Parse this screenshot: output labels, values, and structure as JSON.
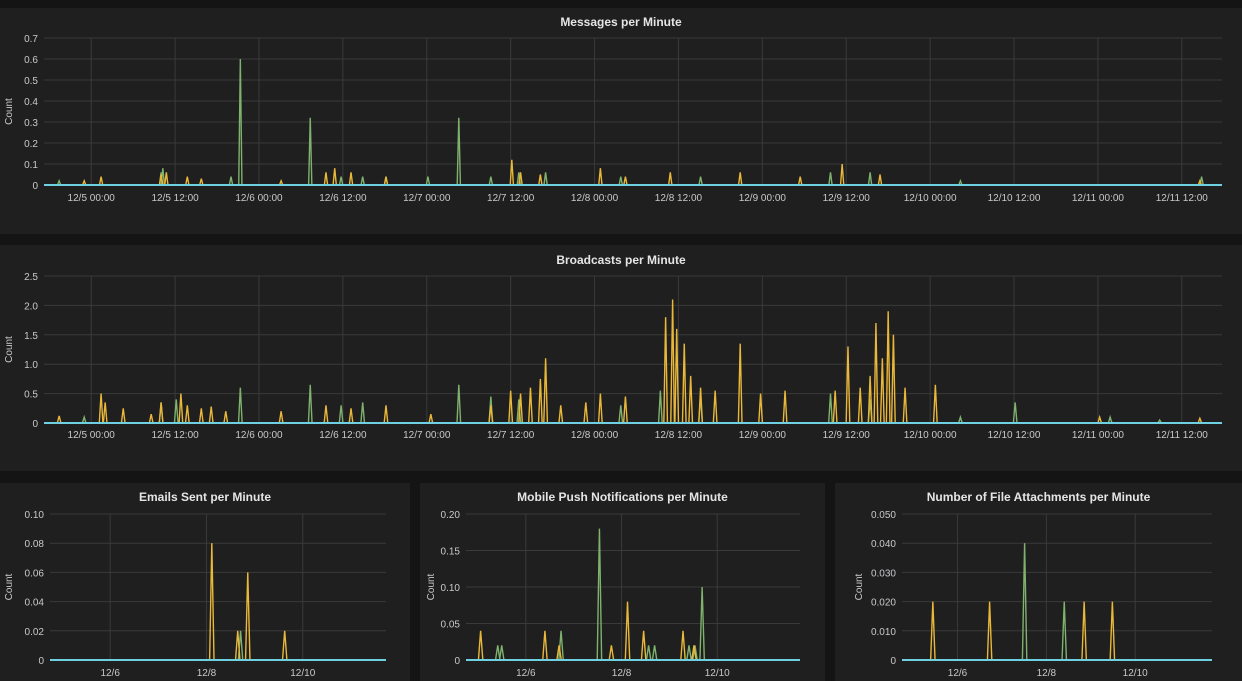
{
  "colors": {
    "background": "#1f1f20",
    "grid": "#3a3a3a",
    "green": "#7eb26d",
    "yellow": "#eab839",
    "cyan": "#6ed0e0"
  },
  "chart_data": [
    {
      "id": "messages",
      "type": "line",
      "title": "Messages per Minute",
      "ylabel": "Count",
      "xrange": [
        "12/4 17:15",
        "12/11 17:45"
      ],
      "ylim": [
        0,
        0.7
      ],
      "yticks": [
        "0",
        "0.1",
        "0.2",
        "0.3",
        "0.4",
        "0.5",
        "0.6",
        "0.7"
      ],
      "xticks": [
        "12/5 00:00",
        "12/5 12:00",
        "12/6 00:00",
        "12/6 12:00",
        "12/7 00:00",
        "12/7 12:00",
        "12/8 00:00",
        "12/8 12:00",
        "12/9 00:00",
        "12/9 12:00",
        "12/10 00:00",
        "12/10 12:00",
        "12/11 00:00",
        "12/11 12:00"
      ],
      "grid": true,
      "series": [
        {
          "color": "#7eb26d",
          "points": [
            [
              "12/4 19:25",
              0.02
            ],
            [
              "12/5 10:00",
              0.06
            ],
            [
              "12/5 10:15",
              0.08
            ],
            [
              "12/5 20:00",
              0.04
            ],
            [
              "12/5 21:20",
              0.6
            ],
            [
              "12/6 07:20",
              0.32
            ],
            [
              "12/6 11:45",
              0.04
            ],
            [
              "12/6 14:50",
              0.04
            ],
            [
              "12/6 18:10",
              0.04
            ],
            [
              "12/7 00:10",
              0.04
            ],
            [
              "12/7 04:35",
              0.32
            ],
            [
              "12/7 09:10",
              0.04
            ],
            [
              "12/7 13:10",
              0.06
            ],
            [
              "12/7 17:00",
              0.06
            ],
            [
              "12/8 03:45",
              0.04
            ],
            [
              "12/8 15:10",
              0.04
            ],
            [
              "12/9 09:45",
              0.06
            ],
            [
              "12/9 15:25",
              0.06
            ],
            [
              "12/10 04:20",
              0.02
            ],
            [
              "12/11 14:50",
              0.04
            ]
          ]
        },
        {
          "color": "#eab839",
          "points": [
            [
              "12/4 23:00",
              0.02
            ],
            [
              "12/5 01:25",
              0.04
            ],
            [
              "12/5 10:00",
              0.05
            ],
            [
              "12/5 10:45",
              0.06
            ],
            [
              "12/5 13:45",
              0.04
            ],
            [
              "12/5 15:45",
              0.03
            ],
            [
              "12/6 03:10",
              0.02
            ],
            [
              "12/6 09:35",
              0.06
            ],
            [
              "12/6 10:50",
              0.08
            ],
            [
              "12/6 13:10",
              0.06
            ],
            [
              "12/6 18:10",
              0.04
            ],
            [
              "12/7 12:10",
              0.12
            ],
            [
              "12/7 13:25",
              0.06
            ],
            [
              "12/7 16:15",
              0.05
            ],
            [
              "12/8 00:50",
              0.08
            ],
            [
              "12/8 04:25",
              0.04
            ],
            [
              "12/8 10:50",
              0.06
            ],
            [
              "12/8 20:50",
              0.06
            ],
            [
              "12/9 05:25",
              0.04
            ],
            [
              "12/9 11:25",
              0.1
            ],
            [
              "12/9 16:50",
              0.05
            ],
            [
              "12/11 14:35",
              0.02
            ]
          ]
        },
        {
          "color": "#6ed0e0",
          "constant": 0
        }
      ]
    },
    {
      "id": "broadcasts",
      "type": "line",
      "title": "Broadcasts per Minute",
      "ylabel": "Count",
      "xrange": [
        "12/4 17:15",
        "12/11 17:45"
      ],
      "ylim": [
        0,
        2.5
      ],
      "yticks": [
        "0",
        "0.5",
        "1.0",
        "1.5",
        "2.0",
        "2.5"
      ],
      "xticks": [
        "12/5 00:00",
        "12/5 12:00",
        "12/6 00:00",
        "12/6 12:00",
        "12/7 00:00",
        "12/7 12:00",
        "12/8 00:00",
        "12/8 12:00",
        "12/9 00:00",
        "12/9 12:00",
        "12/10 00:00",
        "12/10 12:00",
        "12/11 00:00",
        "12/11 12:00"
      ],
      "grid": true,
      "series": [
        {
          "color": "#7eb26d",
          "points": [
            [
              "12/4 23:00",
              0.1
            ],
            [
              "12/5 10:00",
              0.35
            ],
            [
              "12/5 12:10",
              0.4
            ],
            [
              "12/5 21:20",
              0.6
            ],
            [
              "12/6 07:20",
              0.65
            ],
            [
              "12/6 11:45",
              0.3
            ],
            [
              "12/6 14:50",
              0.35
            ],
            [
              "12/7 04:35",
              0.65
            ],
            [
              "12/7 09:10",
              0.45
            ],
            [
              "12/7 13:10",
              0.4
            ],
            [
              "12/8 03:45",
              0.3
            ],
            [
              "12/8 09:25",
              0.55
            ],
            [
              "12/8 15:10",
              0.45
            ],
            [
              "12/9 09:45",
              0.5
            ],
            [
              "12/9 15:25",
              0.4
            ],
            [
              "12/10 04:20",
              0.1
            ],
            [
              "12/10 12:10",
              0.35
            ],
            [
              "12/11 01:45",
              0.1
            ],
            [
              "12/11 08:50",
              0.05
            ]
          ]
        },
        {
          "color": "#eab839",
          "points": [
            [
              "12/4 19:25",
              0.12
            ],
            [
              "12/5 01:25",
              0.5
            ],
            [
              "12/5 02:00",
              0.35
            ],
            [
              "12/5 04:35",
              0.25
            ],
            [
              "12/5 08:35",
              0.15
            ],
            [
              "12/5 10:00",
              0.35
            ],
            [
              "12/5 12:50",
              0.5
            ],
            [
              "12/5 13:45",
              0.3
            ],
            [
              "12/5 15:45",
              0.25
            ],
            [
              "12/5 17:10",
              0.28
            ],
            [
              "12/5 19:15",
              0.2
            ],
            [
              "12/6 03:10",
              0.2
            ],
            [
              "12/6 09:35",
              0.3
            ],
            [
              "12/6 13:10",
              0.25
            ],
            [
              "12/6 18:10",
              0.3
            ],
            [
              "12/7 00:35",
              0.15
            ],
            [
              "12/7 09:10",
              0.3
            ],
            [
              "12/7 12:00",
              0.55
            ],
            [
              "12/7 13:25",
              0.5
            ],
            [
              "12/7 14:50",
              0.6
            ],
            [
              "12/7 16:15",
              0.75
            ],
            [
              "12/7 17:00",
              1.1
            ],
            [
              "12/7 19:10",
              0.3
            ],
            [
              "12/7 22:45",
              0.35
            ],
            [
              "12/8 00:50",
              0.5
            ],
            [
              "12/8 04:25",
              0.45
            ],
            [
              "12/8 10:10",
              1.8
            ],
            [
              "12/8 11:10",
              2.1
            ],
            [
              "12/8 11:45",
              1.6
            ],
            [
              "12/8 12:50",
              1.35
            ],
            [
              "12/8 13:45",
              0.8
            ],
            [
              "12/8 15:10",
              0.6
            ],
            [
              "12/8 17:15",
              0.55
            ],
            [
              "12/8 20:50",
              1.35
            ],
            [
              "12/8 23:45",
              0.5
            ],
            [
              "12/9 03:15",
              0.55
            ],
            [
              "12/9 10:25",
              0.55
            ],
            [
              "12/9 12:15",
              1.3
            ],
            [
              "12/9 14:00",
              0.6
            ],
            [
              "12/9 15:25",
              0.8
            ],
            [
              "12/9 16:15",
              1.7
            ],
            [
              "12/9 17:10",
              1.1
            ],
            [
              "12/9 18:00",
              1.9
            ],
            [
              "12/9 18:45",
              1.5
            ],
            [
              "12/9 20:25",
              0.6
            ],
            [
              "12/10 00:45",
              0.65
            ],
            [
              "12/11 00:15",
              0.1
            ],
            [
              "12/11 14:35",
              0.08
            ]
          ]
        },
        {
          "color": "#6ed0e0",
          "constant": 0
        }
      ]
    },
    {
      "id": "emails",
      "type": "line",
      "title": "Emails Sent per Minute",
      "ylabel": "Count",
      "xrange": [
        "12/4 18:00",
        "12/11 17:30"
      ],
      "ylim": [
        0,
        0.1
      ],
      "yticks": [
        "0",
        "0.02",
        "0.04",
        "0.06",
        "0.08",
        "0.10"
      ],
      "xticks": [
        "12/6",
        "12/8",
        "12/10"
      ],
      "grid": true,
      "series": [
        {
          "color": "#7eb26d",
          "points": [
            [
              "12/8 17:00",
              0.02
            ]
          ]
        },
        {
          "color": "#eab839",
          "points": [
            [
              "12/8 02:40",
              0.08
            ],
            [
              "12/8 15:35",
              0.02
            ],
            [
              "12/8 20:35",
              0.06
            ],
            [
              "12/9 15:00",
              0.02
            ]
          ]
        },
        {
          "color": "#6ed0e0",
          "constant": 0
        }
      ]
    },
    {
      "id": "push",
      "type": "line",
      "title": "Mobile Push Notifications per Minute",
      "ylabel": "Count",
      "xrange": [
        "12/4 18:00",
        "12/11 17:30"
      ],
      "ylim": [
        0,
        0.2
      ],
      "yticks": [
        "0",
        "0.05",
        "0.10",
        "0.15",
        "0.20"
      ],
      "xticks": [
        "12/6",
        "12/8",
        "12/10"
      ],
      "grid": true,
      "series": [
        {
          "color": "#7eb26d",
          "points": [
            [
              "12/5 09:55",
              0.02
            ],
            [
              "12/5 11:55",
              0.02
            ],
            [
              "12/6 17:40",
              0.04
            ],
            [
              "12/7 12:55",
              0.18
            ],
            [
              "12/8 13:35",
              0.02
            ],
            [
              "12/8 16:35",
              0.02
            ],
            [
              "12/9 09:50",
              0.02
            ],
            [
              "12/9 12:50",
              0.02
            ],
            [
              "12/9 16:25",
              0.1
            ]
          ]
        },
        {
          "color": "#eab839",
          "points": [
            [
              "12/5 01:20",
              0.04
            ],
            [
              "12/6 09:35",
              0.04
            ],
            [
              "12/6 16:40",
              0.02
            ],
            [
              "12/7 18:55",
              0.02
            ],
            [
              "12/8 03:00",
              0.08
            ],
            [
              "12/8 11:05",
              0.04
            ],
            [
              "12/9 06:50",
              0.04
            ],
            [
              "12/9 12:20",
              0.02
            ]
          ]
        },
        {
          "color": "#6ed0e0",
          "constant": 0
        }
      ]
    },
    {
      "id": "files",
      "type": "line",
      "title": "Number of File Attachments per Minute",
      "ylabel": "Count",
      "xrange": [
        "12/4 18:00",
        "12/11 17:30"
      ],
      "ylim": [
        0,
        0.05
      ],
      "yticks": [
        "0",
        "0.010",
        "0.020",
        "0.030",
        "0.040",
        "0.050"
      ],
      "xticks": [
        "12/6",
        "12/8",
        "12/10"
      ],
      "grid": true,
      "series": [
        {
          "color": "#7eb26d",
          "points": [
            [
              "12/7 12:15",
              0.04
            ],
            [
              "12/8 09:40",
              0.02
            ]
          ]
        },
        {
          "color": "#eab839",
          "points": [
            [
              "12/5 10:40",
              0.02
            ],
            [
              "12/6 17:20",
              0.02
            ],
            [
              "12/8 20:25",
              0.02
            ],
            [
              "12/9 11:40",
              0.02
            ]
          ]
        },
        {
          "color": "#6ed0e0",
          "constant": 0
        }
      ]
    }
  ]
}
